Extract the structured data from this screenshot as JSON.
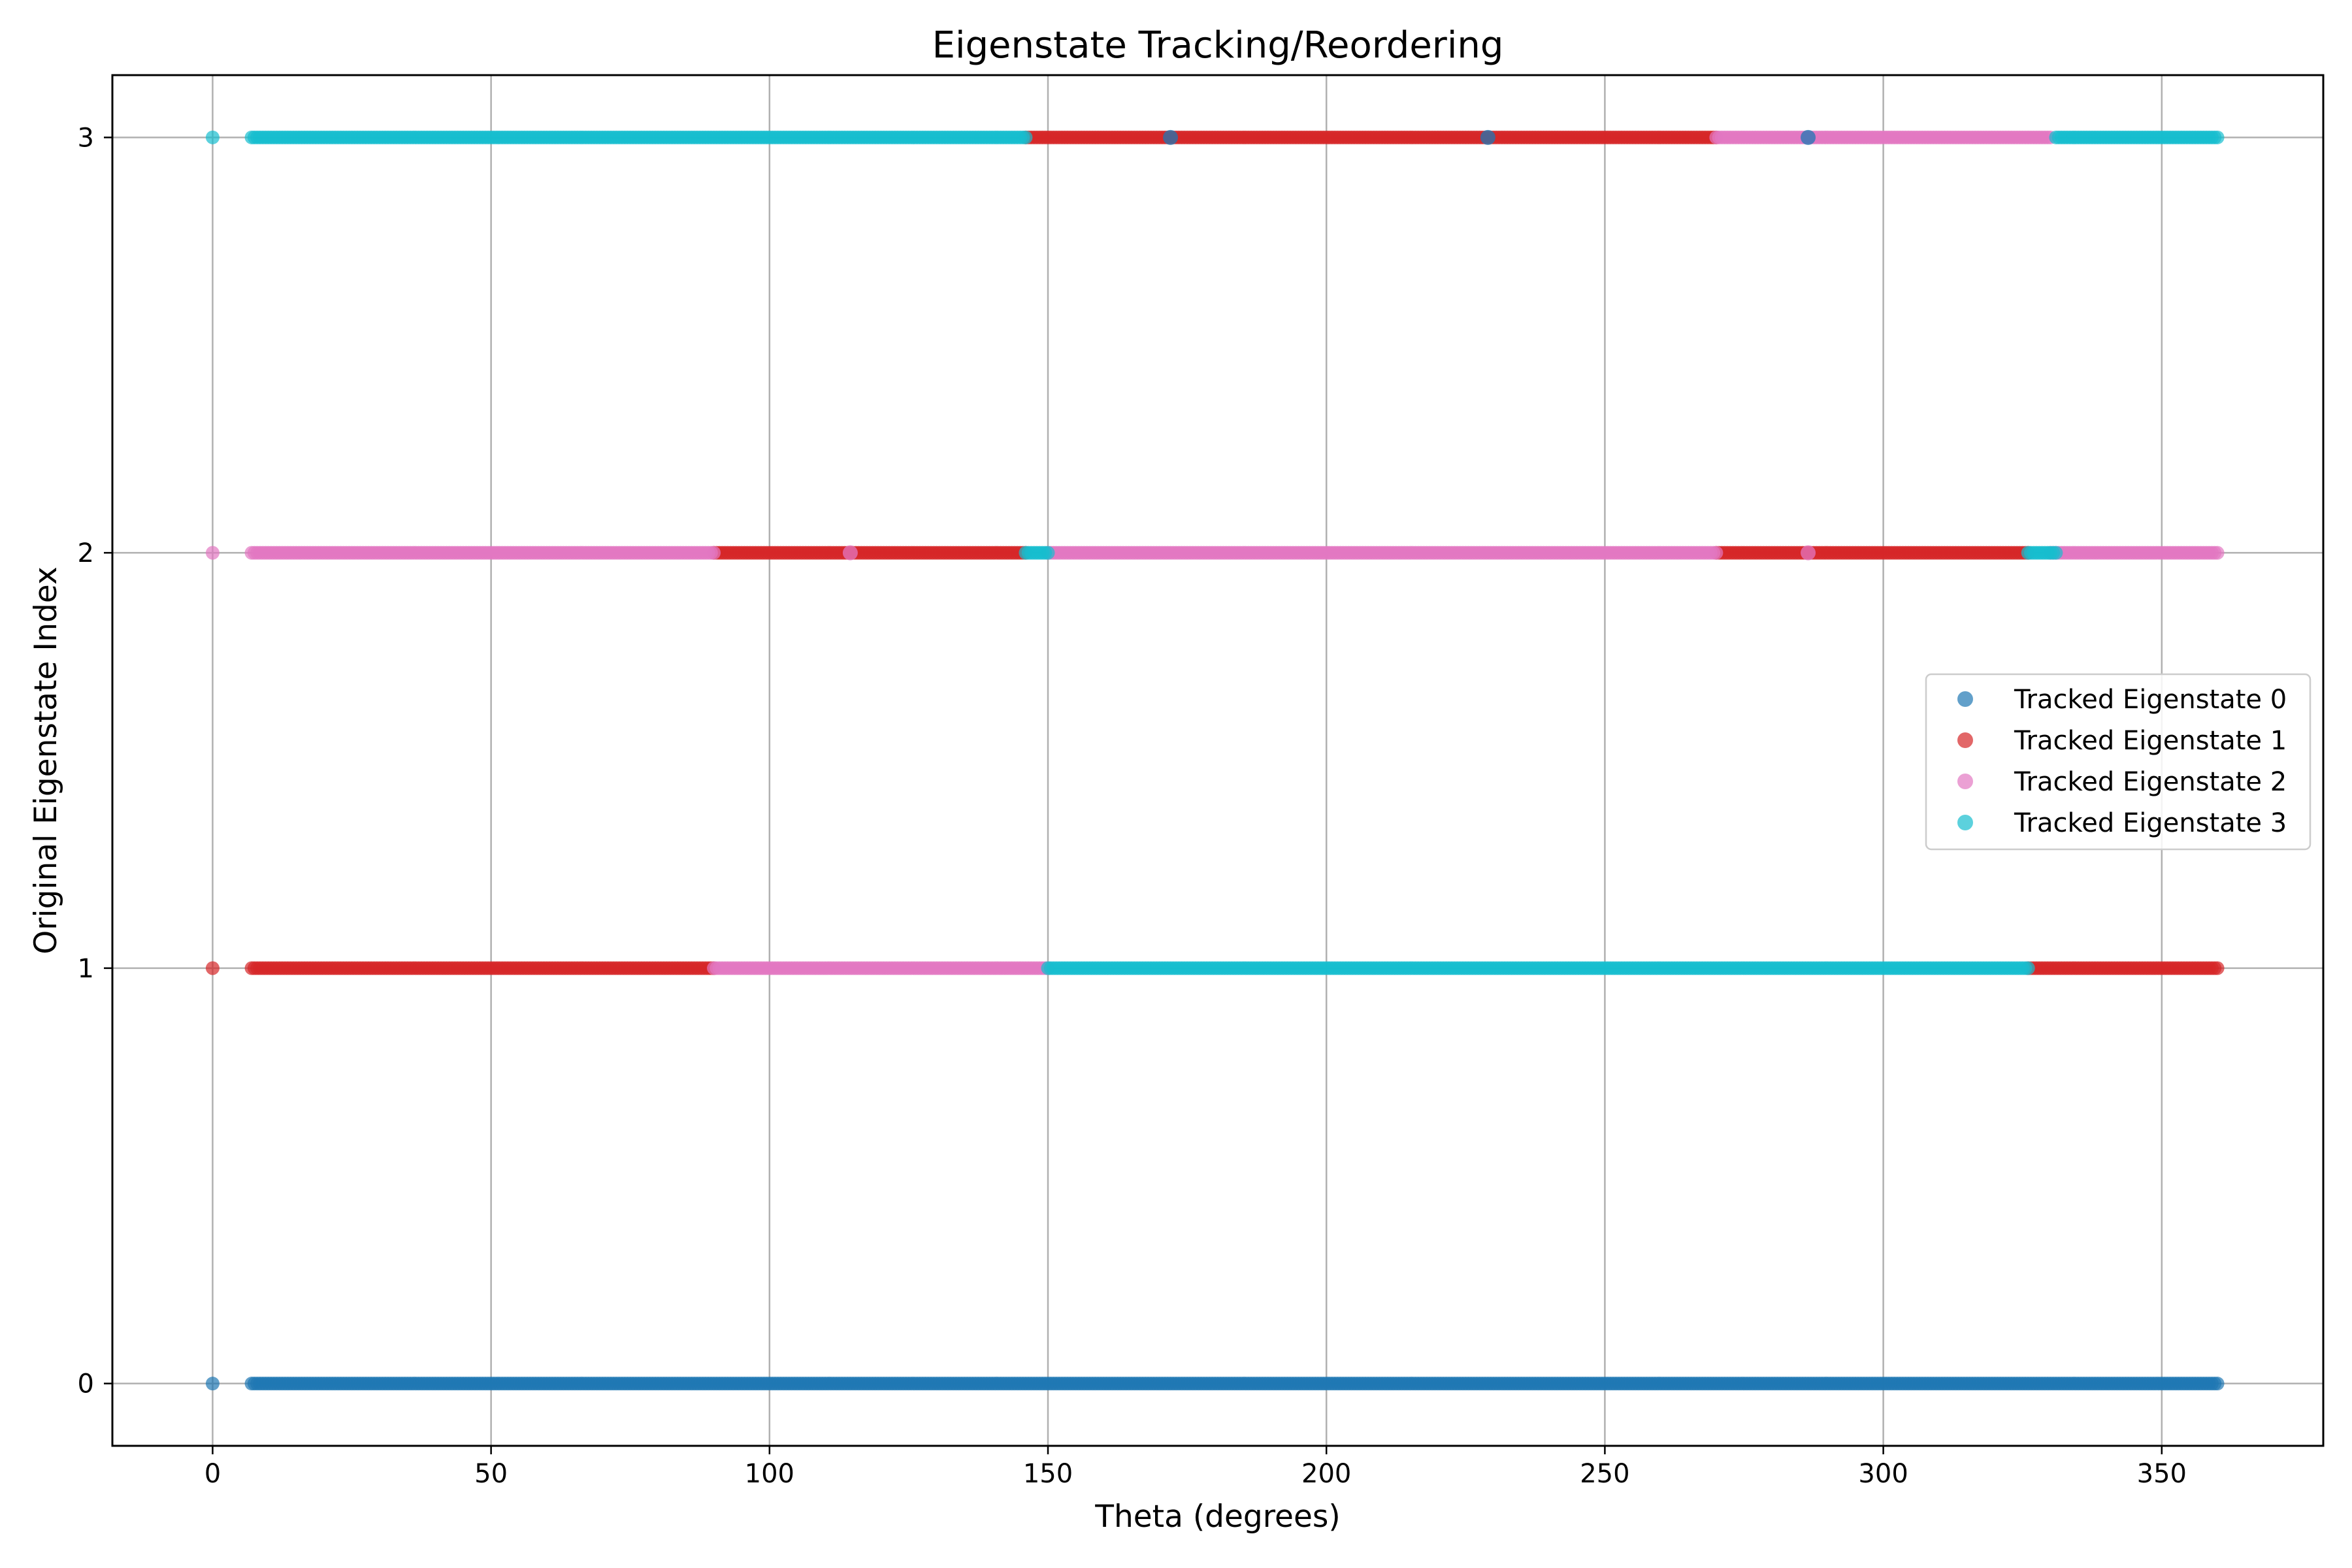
{
  "chart_data": {
    "type": "scatter",
    "title": "Eigenstate Tracking/Reordering",
    "xlabel": "Theta (degrees)",
    "ylabel": "Original Eigenstate Index",
    "xlim": [
      -18,
      379
    ],
    "ylim": [
      -0.15,
      3.15
    ],
    "xticks": [
      0,
      50,
      100,
      150,
      200,
      250,
      300,
      350
    ],
    "yticks": [
      0,
      1,
      2,
      3
    ],
    "grid": true,
    "legend_position": "center-right",
    "theta_step": 0.5,
    "gap_after_zero": [
      0,
      7
    ],
    "series": [
      {
        "name": "Tracked Eigenstate 0",
        "color": "#1f77b4",
        "segments": [
          {
            "x_start": 0,
            "x_end": 360,
            "y": 0
          }
        ]
      },
      {
        "name": "Tracked Eigenstate 1",
        "color": "#d62728",
        "segments": [
          {
            "x_start": 0,
            "x_end": 90,
            "y": 1
          },
          {
            "x_start": 90,
            "x_end": 146,
            "y": 2
          },
          {
            "x_start": 146,
            "x_end": 270,
            "y": 3
          },
          {
            "x_start": 270,
            "x_end": 326,
            "y": 2
          },
          {
            "x_start": 326,
            "x_end": 360,
            "y": 1
          }
        ]
      },
      {
        "name": "Tracked Eigenstate 2",
        "color": "#e377c2",
        "segments": [
          {
            "x_start": 0,
            "x_end": 90,
            "y": 2
          },
          {
            "x_start": 90,
            "x_end": 150,
            "y": 1
          },
          {
            "x_start": 150,
            "x_end": 270,
            "y": 2
          },
          {
            "x_start": 270,
            "x_end": 330,
            "y": 3
          },
          {
            "x_start": 330,
            "x_end": 360,
            "y": 2
          }
        ]
      },
      {
        "name": "Tracked Eigenstate 3",
        "color": "#17becf",
        "segments": [
          {
            "x_start": 0,
            "x_end": 146,
            "y": 3
          },
          {
            "x_start": 146,
            "x_end": 150,
            "y": 2
          },
          {
            "x_start": 150,
            "x_end": 326,
            "y": 1
          },
          {
            "x_start": 326,
            "x_end": 331,
            "y": 2
          },
          {
            "x_start": 331,
            "x_end": 360,
            "y": 3
          }
        ]
      }
    ],
    "overlay_points": [
      {
        "series": 0,
        "x": 172,
        "y": 3
      },
      {
        "series": 0,
        "x": 229,
        "y": 3
      },
      {
        "series": 0,
        "x": 286.5,
        "y": 3
      },
      {
        "series": 2,
        "x": 114.5,
        "y": 2
      },
      {
        "series": 2,
        "x": 286.5,
        "y": 2
      }
    ]
  }
}
